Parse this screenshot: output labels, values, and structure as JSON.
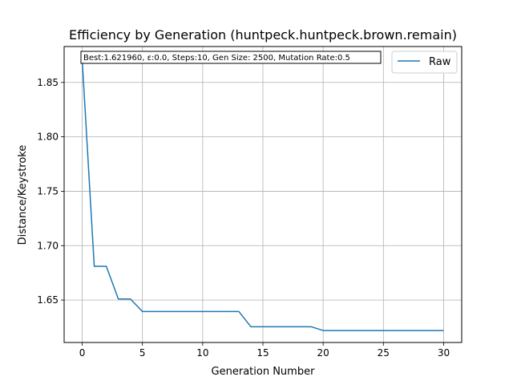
{
  "chart_data": {
    "type": "line",
    "title": "Efficiency by Generation (huntpeck.huntpeck.brown.remain)",
    "annotation": "Best:1.621960, ε:0.0, Steps:10, Gen Size: 2500, Mutation Rate:0.5",
    "xlabel": "Generation Number",
    "ylabel": "Distance/Keystroke",
    "xlim": [
      -1.5,
      31.5
    ],
    "ylim": [
      1.611,
      1.883
    ],
    "xticks": [
      0,
      5,
      10,
      15,
      20,
      25,
      30
    ],
    "xtick_labels": [
      "0",
      "5",
      "10",
      "15",
      "20",
      "25",
      "30"
    ],
    "yticks": [
      1.65,
      1.7,
      1.75,
      1.8,
      1.85
    ],
    "ytick_labels": [
      "1.65",
      "1.70",
      "1.75",
      "1.80",
      "1.85"
    ],
    "grid": true,
    "legend_position": "top-right",
    "series": [
      {
        "name": "Raw",
        "color": "#1f77b4",
        "x": [
          0,
          1,
          2,
          3,
          4,
          5,
          6,
          7,
          8,
          9,
          10,
          11,
          12,
          13,
          14,
          15,
          16,
          17,
          18,
          19,
          20,
          21,
          22,
          23,
          24,
          25,
          26,
          27,
          28,
          29,
          30
        ],
        "y": [
          1.871,
          1.681,
          1.681,
          1.651,
          1.651,
          1.6395,
          1.6395,
          1.6395,
          1.6395,
          1.6395,
          1.6395,
          1.6395,
          1.6395,
          1.6395,
          1.6255,
          1.6255,
          1.6255,
          1.6255,
          1.6255,
          1.6255,
          1.622,
          1.622,
          1.622,
          1.622,
          1.622,
          1.622,
          1.622,
          1.622,
          1.622,
          1.622,
          1.622
        ]
      }
    ]
  }
}
